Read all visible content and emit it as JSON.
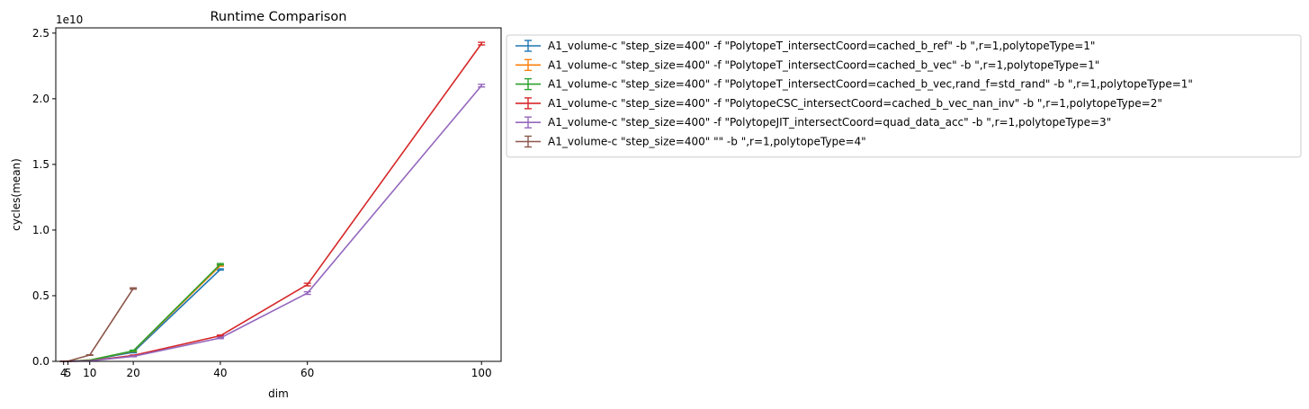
{
  "chart_data": {
    "type": "line",
    "title": "Runtime Comparison",
    "xlabel": "dim",
    "ylabel": "cycles(mean)",
    "offset_label": "1e10",
    "xlim": [
      2.2,
      104.5
    ],
    "ylim": [
      0,
      2.54
    ],
    "xticks": [
      4,
      5,
      10,
      20,
      40,
      60,
      100
    ],
    "yticks": [
      0.0,
      0.5,
      1.0,
      1.5,
      2.0,
      2.5
    ],
    "ytick_labels": [
      "0.0",
      "0.5",
      "1.0",
      "1.5",
      "2.0",
      "2.5"
    ],
    "grid": false,
    "error_bars": true,
    "legend_position": "outside-upper-right",
    "series": [
      {
        "name": "A1_volume-c \"step_size=400\" -f \"PolytopeT_intersectCoord=cached_b_ref\" -b \",r=1,polytopeType=1\"",
        "color": "#1f77b4",
        "x": [
          4,
          5,
          10,
          20,
          40
        ],
        "y": [
          0.0003,
          0.0006,
          0.008,
          0.07,
          0.7
        ],
        "err": [
          0.0,
          0.0,
          0.001,
          0.005,
          0.005
        ]
      },
      {
        "name": "A1_volume-c \"step_size=400\" -f \"PolytopeT_intersectCoord=cached_b_vec\" -b \",r=1,polytopeType=1\"",
        "color": "#ff7f0e",
        "x": [
          4,
          5,
          10,
          20,
          40
        ],
        "y": [
          0.0003,
          0.0006,
          0.009,
          0.078,
          0.73
        ],
        "err": [
          0.0,
          0.0,
          0.001,
          0.005,
          0.005
        ]
      },
      {
        "name": "A1_volume-c \"step_size=400\" -f \"PolytopeT_intersectCoord=cached_b_vec,rand_f=std_rand\" -b \",r=1,polytopeType=1\"",
        "color": "#2ca02c",
        "x": [
          4,
          5,
          10,
          20,
          40
        ],
        "y": [
          0.0003,
          0.0006,
          0.009,
          0.08,
          0.74
        ],
        "err": [
          0.0,
          0.0,
          0.001,
          0.005,
          0.005
        ]
      },
      {
        "name": "A1_volume-c \"step_size=400\" -f \"PolytopeCSC_intersectCoord=cached_b_vec_nan_inv\" -b \",r=1,polytopeType=2\"",
        "color": "#d62728",
        "x": [
          4,
          5,
          10,
          20,
          40,
          60,
          100
        ],
        "y": [
          0.0002,
          0.0004,
          0.004,
          0.045,
          0.195,
          0.585,
          2.42
        ],
        "err": [
          0.0,
          0.0,
          0.0005,
          0.003,
          0.005,
          0.01,
          0.01
        ]
      },
      {
        "name": "A1_volume-c \"step_size=400\" -f \"PolytopeJIT_intersectCoord=quad_data_acc\" -b \",r=1,polytopeType=3\"",
        "color": "#9467bd",
        "x": [
          4,
          5,
          10,
          20,
          40,
          60,
          100
        ],
        "y": [
          0.0001,
          0.0003,
          0.003,
          0.038,
          0.178,
          0.52,
          2.1
        ],
        "err": [
          0.0,
          0.0,
          0.0005,
          0.003,
          0.005,
          0.01,
          0.01
        ]
      },
      {
        "name": "A1_volume-c \"step_size=400\"  \"\" -b \",r=1,polytopeType=4\"",
        "color": "#8c564b",
        "x": [
          4,
          5,
          10,
          20
        ],
        "y": [
          0.0003,
          0.002,
          0.048,
          0.555
        ],
        "err": [
          0.0,
          0.0,
          0.002,
          0.005
        ]
      }
    ]
  }
}
